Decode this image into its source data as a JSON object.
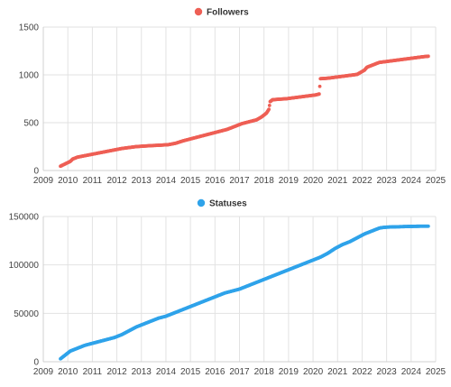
{
  "chart_data": [
    {
      "type": "scatter",
      "legend_position": "top-center",
      "grid": true,
      "color": "#ee5f55",
      "series": [
        {
          "name": "Followers",
          "x": [
            2009.7,
            2009.9,
            2010.1,
            2010.2,
            2010.4,
            2010.6,
            2010.8,
            2011.0,
            2011.3,
            2011.6,
            2011.9,
            2012.2,
            2012.5,
            2012.8,
            2013.1,
            2013.4,
            2013.8,
            2014.1,
            2014.4,
            2014.7,
            2015.0,
            2015.3,
            2015.6,
            2015.9,
            2016.2,
            2016.5,
            2016.8,
            2017.1,
            2017.4,
            2017.7,
            2017.9,
            2018.1,
            2018.2,
            2018.25,
            2018.35,
            2018.6,
            2018.9,
            2019.2,
            2019.5,
            2019.8,
            2020.1,
            2020.25,
            2020.3,
            2020.6,
            2020.9,
            2021.2,
            2021.5,
            2021.8,
            2022.1,
            2022.2,
            2022.4,
            2022.7,
            2023.0,
            2023.3,
            2023.6,
            2023.9,
            2024.2,
            2024.5,
            2024.7
          ],
          "y": [
            45,
            70,
            95,
            120,
            140,
            150,
            160,
            170,
            185,
            200,
            215,
            230,
            240,
            250,
            255,
            260,
            265,
            270,
            285,
            310,
            330,
            350,
            370,
            390,
            410,
            430,
            460,
            490,
            510,
            530,
            560,
            600,
            640,
            720,
            740,
            745,
            750,
            760,
            770,
            780,
            790,
            800,
            960,
            965,
            975,
            985,
            995,
            1005,
            1050,
            1080,
            1100,
            1130,
            1140,
            1150,
            1160,
            1170,
            1180,
            1190,
            1195
          ]
        }
      ],
      "xlim": [
        2009,
        2025
      ],
      "ylim": [
        0,
        1500
      ],
      "xticks": [
        "2009",
        "2010",
        "2011",
        "2012",
        "2013",
        "2014",
        "2015",
        "2016",
        "2017",
        "2018",
        "2019",
        "2020",
        "2021",
        "2022",
        "2023",
        "2024",
        "2025"
      ],
      "yticks": [
        "0",
        "500",
        "1000",
        "1500"
      ]
    },
    {
      "type": "scatter",
      "legend_position": "top-center",
      "grid": true,
      "color": "#2fa3ea",
      "series": [
        {
          "name": "Statuses",
          "x": [
            2009.7,
            2009.9,
            2010.1,
            2010.4,
            2010.7,
            2011.0,
            2011.3,
            2011.6,
            2011.9,
            2012.2,
            2012.5,
            2012.8,
            2013.1,
            2013.4,
            2013.7,
            2014.0,
            2014.3,
            2014.6,
            2014.9,
            2015.2,
            2015.5,
            2015.8,
            2016.1,
            2016.4,
            2016.7,
            2017.0,
            2017.3,
            2017.6,
            2017.9,
            2018.2,
            2018.5,
            2018.8,
            2019.1,
            2019.4,
            2019.7,
            2020.0,
            2020.3,
            2020.6,
            2020.9,
            2021.2,
            2021.5,
            2021.8,
            2022.1,
            2022.4,
            2022.7,
            2022.8,
            2023.0,
            2023.3,
            2023.6,
            2023.9,
            2024.2,
            2024.5,
            2024.7
          ],
          "y": [
            3000,
            7000,
            11000,
            14000,
            17000,
            19000,
            21000,
            23000,
            25000,
            28000,
            32000,
            36000,
            39000,
            42000,
            45000,
            47000,
            50000,
            53000,
            56000,
            59000,
            62000,
            65000,
            68000,
            71000,
            73000,
            75000,
            78000,
            81000,
            84000,
            87000,
            90000,
            93000,
            96000,
            99000,
            102000,
            105000,
            108000,
            112000,
            117000,
            121000,
            124000,
            128000,
            132000,
            135000,
            138000,
            138500,
            139000,
            139300,
            139500,
            139700,
            139900,
            140000,
            140000
          ]
        }
      ],
      "xlim": [
        2009,
        2025
      ],
      "ylim": [
        0,
        150000
      ],
      "xticks": [
        "2009",
        "2010",
        "2011",
        "2012",
        "2013",
        "2014",
        "2015",
        "2016",
        "2017",
        "2018",
        "2019",
        "2020",
        "2021",
        "2022",
        "2023",
        "2024",
        "2025"
      ],
      "yticks": [
        "0",
        "50000",
        "100000",
        "150000"
      ]
    }
  ]
}
